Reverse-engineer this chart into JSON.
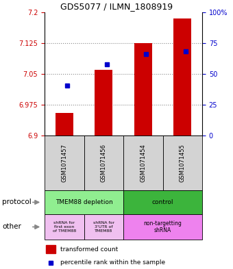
{
  "title": "GDS5077 / ILMN_1808919",
  "samples": [
    "GSM1071457",
    "GSM1071456",
    "GSM1071454",
    "GSM1071455"
  ],
  "red_values": [
    6.955,
    7.06,
    7.125,
    7.185
  ],
  "blue_values": [
    7.022,
    7.073,
    7.098,
    7.105
  ],
  "ymin": 6.9,
  "ymax": 7.2,
  "yticks_left": [
    6.9,
    6.975,
    7.05,
    7.125,
    7.2
  ],
  "yticks_right": [
    0,
    25,
    50,
    75,
    100
  ],
  "protocol_labels": [
    "TMEM88 depletion",
    "control"
  ],
  "protocol_colors": [
    "#90ee90",
    "#3cb43c"
  ],
  "other_labels": [
    "shRNA for\nfirst exon\nof TMEM88",
    "shRNA for\n3'UTR of\nTMEM88",
    "non-targetting\nshRNA"
  ],
  "other_colors_light": "#f0c0f0",
  "other_colors_bright": "#ee82ee",
  "bar_color": "#cc0000",
  "blue_color": "#0000cc",
  "bg_color": "#d3d3d3",
  "label_color_left": "#cc0000",
  "label_color_right": "#0000cc",
  "grid_color": "#888888",
  "grid_ticks": [
    6.975,
    7.05,
    7.125
  ]
}
